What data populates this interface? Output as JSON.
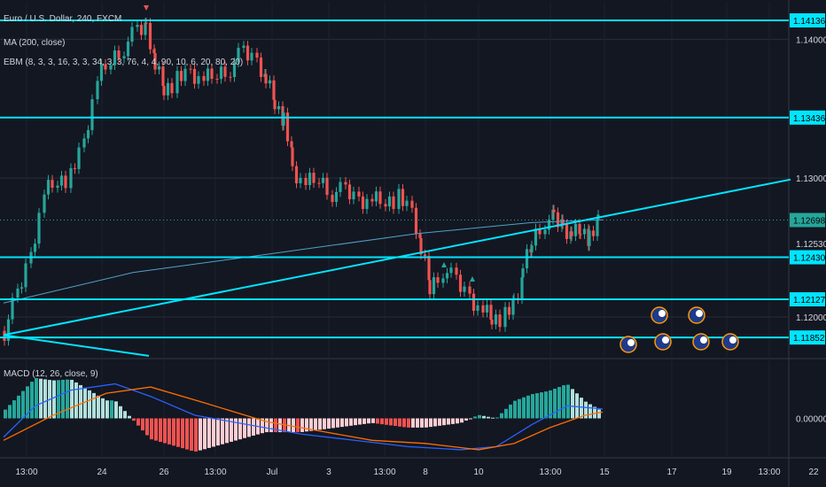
{
  "legend": {
    "symbol": "Euro / U.S. Dollar, 240, FXCM",
    "ma": "MA (200, close)",
    "ebm": "EBM (8, 3, 3, 16, 3, 3, 34, 3, 3, 76, 4, 4, 90, 10, 6, 20, 80, 20)",
    "macd": "MACD (12, 26, close, 9)"
  },
  "colors": {
    "background": "#131722",
    "up": "#26a69a",
    "down": "#ef5350",
    "level": "#00e5ff",
    "ma": "#4fa3c7",
    "macd": "#2962ff",
    "signal": "#ff6d00"
  },
  "chart_data": {
    "type": "candlestick",
    "ylim": [
      1.117,
      1.1427
    ],
    "ytick_labels": [
      "1.14000",
      "1.13000",
      "1.12000"
    ],
    "ytick_values": [
      1.14,
      1.13,
      1.12
    ],
    "xtick_labels": [
      "13:00",
      "24",
      "26",
      "13:00",
      "Jul",
      "3",
      "13:00",
      "8",
      "10",
      "13:00",
      "15",
      "17",
      "19",
      "13:00",
      "22"
    ],
    "horizontal_levels": [
      1.14136,
      1.13436,
      1.1243,
      1.12127,
      1.11852
    ],
    "level_labels": [
      "1.14136",
      "1.13436",
      "1.12430",
      "1.12127",
      "1.11852"
    ],
    "last_price": 1.12698,
    "last_price_label": "1.12698",
    "hidden_label": "1.12530",
    "ma_line": [
      [
        4,
        1.121
      ],
      [
        150,
        1.1232
      ],
      [
        300,
        1.1245
      ],
      [
        470,
        1.126
      ],
      [
        600,
        1.1268
      ],
      [
        680,
        1.127
      ]
    ],
    "trendlines": [
      {
        "from": [
          4,
          1.1187
        ],
        "to": [
          892,
          1.1299
        ]
      },
      {
        "from": [
          4,
          1.1187
        ],
        "to": [
          168,
          1.1172
        ]
      }
    ],
    "candles_anchor": [
      [
        5,
        1.119
      ],
      [
        20,
        1.1215
      ],
      [
        35,
        1.1245
      ],
      [
        50,
        1.129
      ],
      [
        65,
        1.13
      ],
      [
        80,
        1.13
      ],
      [
        95,
        1.1325
      ],
      [
        110,
        1.137
      ],
      [
        125,
        1.1385
      ],
      [
        140,
        1.1395
      ],
      [
        155,
        1.1405
      ],
      [
        165,
        1.141
      ],
      [
        175,
        1.138
      ],
      [
        185,
        1.1365
      ],
      [
        200,
        1.137
      ],
      [
        215,
        1.1375
      ],
      [
        230,
        1.137
      ],
      [
        245,
        1.1375
      ],
      [
        260,
        1.138
      ],
      [
        275,
        1.139
      ],
      [
        290,
        1.1385
      ],
      [
        300,
        1.137
      ],
      [
        310,
        1.1355
      ],
      [
        320,
        1.134
      ],
      [
        330,
        1.1305
      ],
      [
        345,
        1.1295
      ],
      [
        360,
        1.13
      ],
      [
        375,
        1.129
      ],
      [
        390,
        1.129
      ],
      [
        405,
        1.1285
      ],
      [
        420,
        1.1285
      ],
      [
        435,
        1.1285
      ],
      [
        450,
        1.1285
      ],
      [
        465,
        1.1275
      ],
      [
        475,
        1.1245
      ],
      [
        485,
        1.122
      ],
      [
        500,
        1.1235
      ],
      [
        515,
        1.1225
      ],
      [
        530,
        1.1215
      ],
      [
        545,
        1.1205
      ],
      [
        555,
        1.12
      ],
      [
        570,
        1.12
      ],
      [
        580,
        1.121
      ],
      [
        590,
        1.1235
      ],
      [
        600,
        1.1255
      ],
      [
        615,
        1.127
      ],
      [
        625,
        1.127
      ],
      [
        635,
        1.1265
      ],
      [
        645,
        1.126
      ],
      [
        655,
        1.1265
      ],
      [
        665,
        1.1255
      ],
      [
        675,
        1.127
      ]
    ],
    "macd": {
      "ylim": [
        -0.0012,
        0.0012
      ],
      "tick_labels": [
        "0.00000"
      ],
      "tick_values": [
        0.0
      ],
      "macd_line": [
        [
          4,
          -0.0006
        ],
        [
          40,
          0.0004
        ],
        [
          80,
          0.0009
        ],
        [
          130,
          0.0011
        ],
        [
          170,
          0.0007
        ],
        [
          220,
          0.0001
        ],
        [
          280,
          -0.0002
        ],
        [
          340,
          -0.0005
        ],
        [
          400,
          -0.0007
        ],
        [
          460,
          -0.0009
        ],
        [
          520,
          -0.001
        ],
        [
          560,
          -0.0009
        ],
        [
          600,
          -0.0002
        ],
        [
          640,
          0.0004
        ],
        [
          680,
          0.0003
        ]
      ],
      "signal_line": [
        [
          4,
          -0.0007
        ],
        [
          60,
          0.0001
        ],
        [
          120,
          0.0008
        ],
        [
          170,
          0.001
        ],
        [
          230,
          0.0005
        ],
        [
          300,
          -0.0001
        ],
        [
          360,
          -0.0004
        ],
        [
          420,
          -0.0007
        ],
        [
          480,
          -0.0008
        ],
        [
          540,
          -0.001
        ],
        [
          580,
          -0.0008
        ],
        [
          620,
          -0.0003
        ],
        [
          660,
          0.0001
        ],
        [
          680,
          0.0002
        ]
      ]
    }
  }
}
